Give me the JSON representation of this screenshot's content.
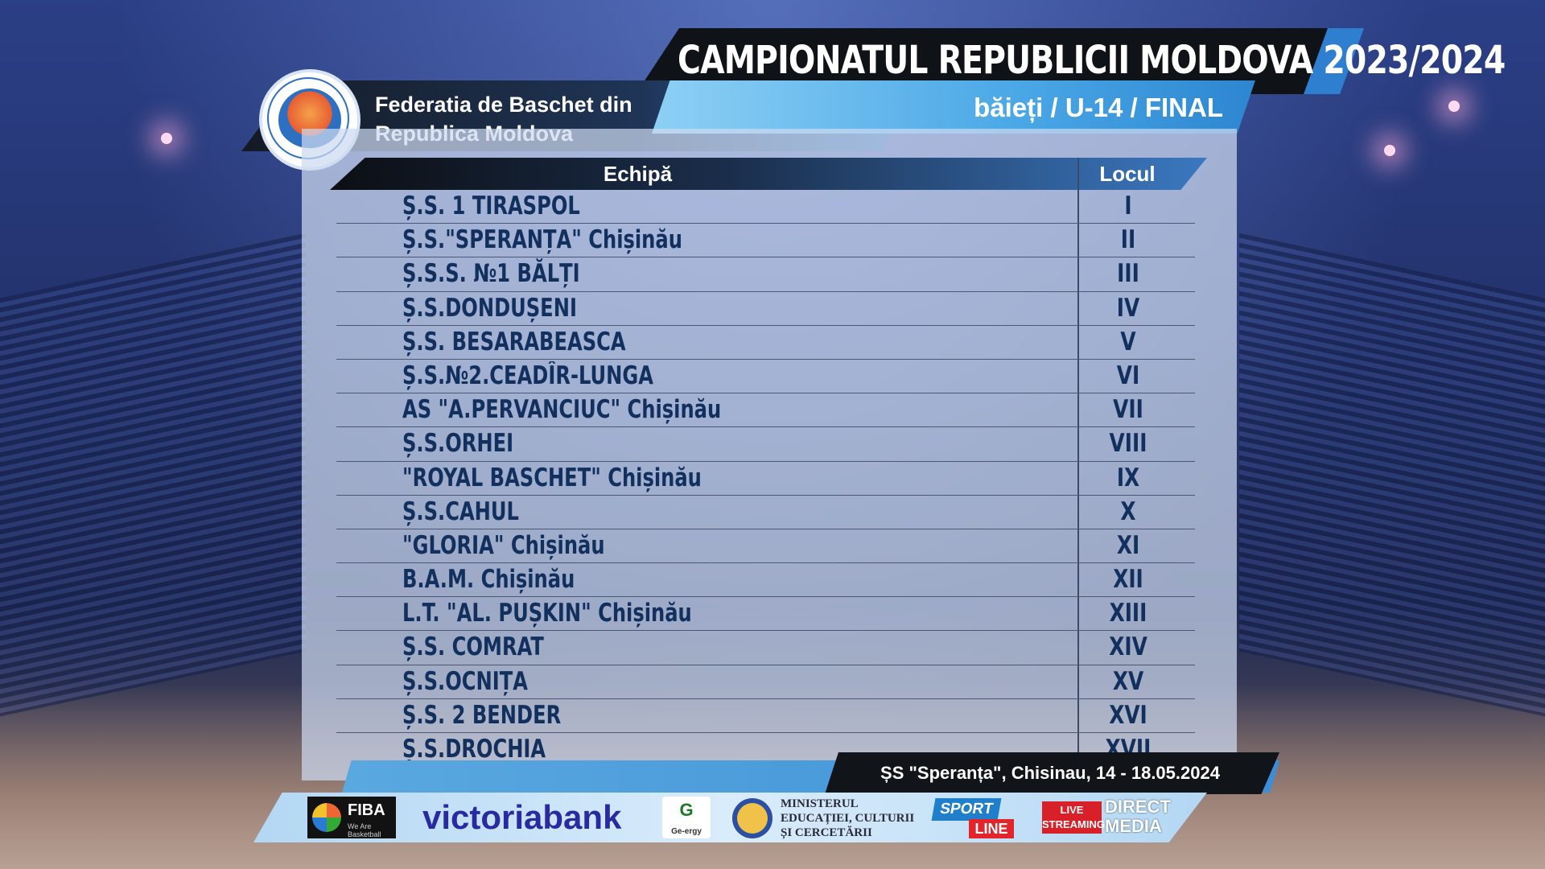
{
  "header": {
    "title": "CAMPIONATUL REPUBLICII MOLDOVA 2023/2024",
    "subtitle": "băieți / U-14 / FINAL",
    "federation": "Federatia de Baschet din Republica Moldova"
  },
  "table": {
    "col_team": "Echipă",
    "col_place": "Locul",
    "rows": [
      {
        "team": "Ș.S. 1 TIRASPOL",
        "place": "I"
      },
      {
        "team": "Ș.S.\"SPERANȚA\"  Chișinău",
        "place": "II"
      },
      {
        "team": "Ș.S.S. №1 BĂLȚI",
        "place": "III"
      },
      {
        "team": "Ș.S.DONDUȘENI",
        "place": "IV"
      },
      {
        "team": "Ș.S. BESARABEASCA",
        "place": "V"
      },
      {
        "team": "Ș.S.№2.CEADÎR-LUNGA",
        "place": "VI"
      },
      {
        "team": "AS \"A.PERVANCIUC\" Chișinău",
        "place": "VII"
      },
      {
        "team": "Ș.S.ORHEI",
        "place": "VIII"
      },
      {
        "team": "\"ROYAL BASCHET\" Chișinău",
        "place": "IX"
      },
      {
        "team": "Ș.S.CAHUL",
        "place": "X"
      },
      {
        "team": "\"GLORIA\" Chișinău",
        "place": "XI"
      },
      {
        "team": "B.A.M. Chișinău",
        "place": "XII"
      },
      {
        "team": "L.T. \"AL. PUȘKIN\" Chișinău",
        "place": "XIII"
      },
      {
        "team": "Ș.S. COMRAT",
        "place": "XIV"
      },
      {
        "team": "Ș.S.OCNIȚA",
        "place": "XV"
      },
      {
        "team": "Ș.S. 2 BENDER",
        "place": "XVI"
      },
      {
        "team": "Ș.S.DROCHIA",
        "place": "XVII"
      }
    ]
  },
  "venue": "ȘS \"Speranța\", Chisinau, 14 - 18.05.2024",
  "sponsors": {
    "fiba": "FIBA",
    "fiba_tag": "We Are Basketball",
    "victoriabank": "victoriabank",
    "genergy": "G",
    "genergy_name": "Ge-ergy",
    "ministry": "MINISTERUL EDUCAȚIEI, CULTURII ȘI CERCETĂRII",
    "sport_line_a": "SPORT",
    "sport_line_b": "LINE",
    "live_streaming": "LIVE STREAMING",
    "direct": "DIRECT",
    "media": "MEDIA"
  },
  "colors": {
    "title_bg": "#0f1216",
    "accent_blue": "#2f7fd0",
    "row_text": "#12305e",
    "panel": "#cddaf0"
  }
}
